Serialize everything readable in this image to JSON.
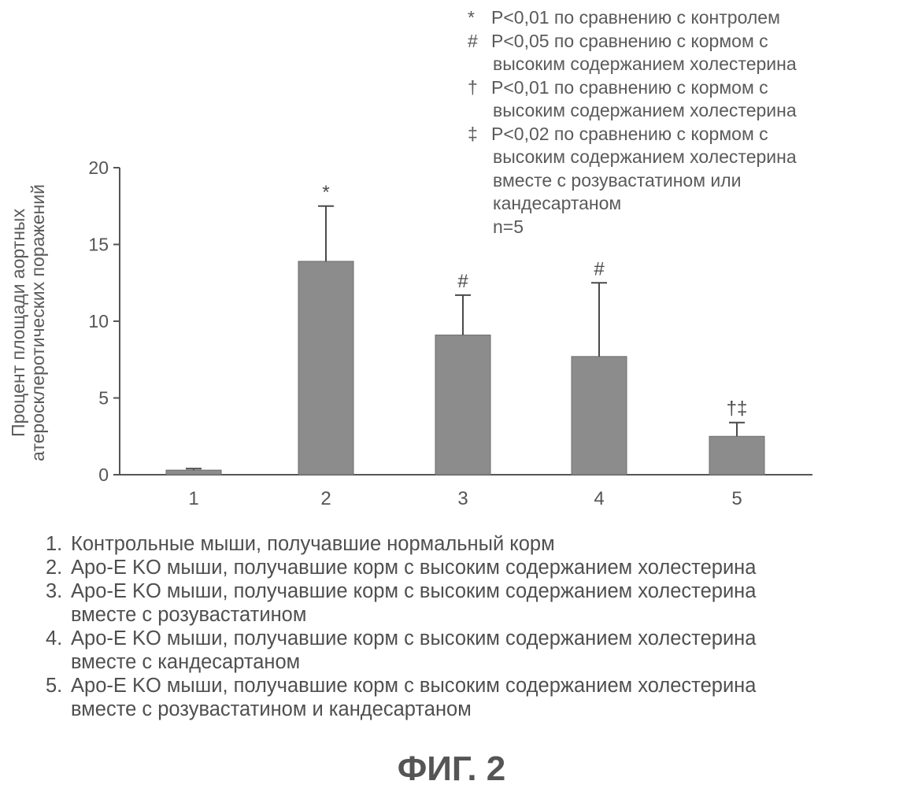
{
  "chart_data": {
    "type": "bar",
    "categories": [
      "1",
      "2",
      "3",
      "4",
      "5"
    ],
    "values": [
      0.3,
      13.9,
      9.1,
      7.7,
      2.5
    ],
    "errors": [
      0.1,
      3.6,
      2.6,
      4.8,
      0.9
    ],
    "bar_marks": [
      "",
      "*",
      "#",
      "#",
      "†‡"
    ],
    "ylim": [
      0,
      20
    ],
    "yticks": [
      "0",
      "5",
      "10",
      "15",
      "20"
    ],
    "ylabel_line1": "Процент площади аортных",
    "ylabel_line2": "атеросклеротических поражений",
    "xlabel": "",
    "bar_color": "#8c8c8c",
    "axis_color": "#555555"
  },
  "legend": {
    "lines": [
      {
        "sym": "*",
        "text": "P<0,01 по сравнению с контролем"
      },
      {
        "sym": "#",
        "text": "P<0,05 по сравнению с кормом с"
      },
      {
        "sym": "",
        "text": "высоким содержанием холестерина"
      },
      {
        "sym": "†",
        "text": "P<0,01 по сравнению с кормом с"
      },
      {
        "sym": "",
        "text": "высоким содержанием холестерина"
      },
      {
        "sym": "‡",
        "text": "P<0,02 по сравнению с кормом с"
      },
      {
        "sym": "",
        "text": "высоким содержанием холестерина"
      },
      {
        "sym": "",
        "text": "вместе с розувастатином или"
      },
      {
        "sym": "",
        "text": "кандесартаном"
      }
    ],
    "n": "n=5"
  },
  "groups": [
    {
      "num": "1.",
      "line1": "Контрольные мыши, получавшие нормальный корм",
      "line2": ""
    },
    {
      "num": "2.",
      "line1": "Apo-E KO мыши, получавшие корм с высоким содержанием холестерина",
      "line2": ""
    },
    {
      "num": "3.",
      "line1": "Apo-E KO мыши, получавшие корм с высоким содержанием холестерина",
      "line2": "вместе с розувастатином"
    },
    {
      "num": "4.",
      "line1": "Apo-E KO мыши, получавшие корм с высоким содержанием холестерина",
      "line2": "вместе с кандесартаном"
    },
    {
      "num": "5.",
      "line1": "Apo-E KO мыши, получавшие корм с высоким содержанием холестерина",
      "line2": "вместе с розувастатином и кандесартаном"
    }
  ],
  "figure_title": "ФИГ. 2"
}
